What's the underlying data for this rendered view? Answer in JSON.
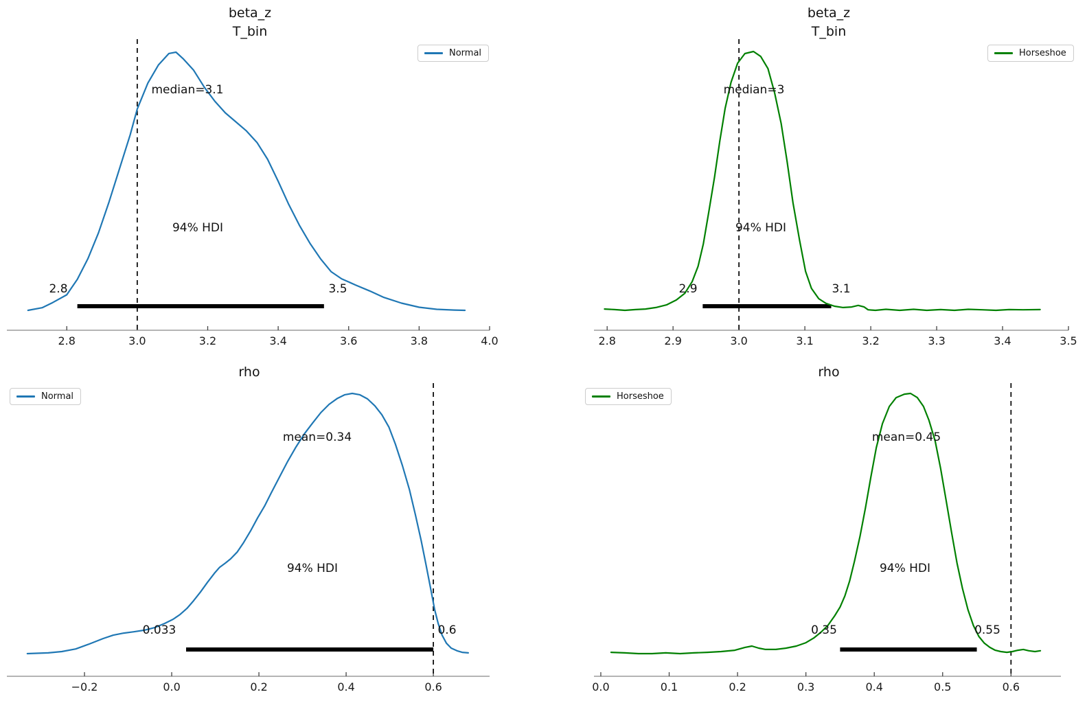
{
  "figure": {
    "background": "#ffffff",
    "hdi_bar_color": "#000000",
    "ref_line_color": "#000000"
  },
  "chart_data": [
    {
      "type": "kde",
      "title_lines": [
        "beta_z",
        "T_bin"
      ],
      "legend_label": "Normal",
      "color": "#1f77b4",
      "xlim": [
        2.63,
        4.0
      ],
      "ref_line_x": 3.0,
      "point_estimate_text": "median=3.1",
      "hdi": {
        "text": "94% HDI",
        "lower": 2.83,
        "upper": 3.53,
        "lower_label": "2.8",
        "upper_label": "3.5"
      },
      "x_ticks": [
        {
          "v": 2.8,
          "label": "2.8"
        },
        {
          "v": 3.0,
          "label": "3.0"
        },
        {
          "v": 3.2,
          "label": "3.2"
        },
        {
          "v": 3.4,
          "label": "3.4"
        },
        {
          "v": 3.6,
          "label": "3.6"
        },
        {
          "v": 3.8,
          "label": "3.8"
        },
        {
          "v": 4.0,
          "label": "4.0"
        }
      ],
      "curve": [
        [
          2.69,
          0
        ],
        [
          2.73,
          0.01
        ],
        [
          2.76,
          0.03
        ],
        [
          2.8,
          0.06
        ],
        [
          2.83,
          0.12
        ],
        [
          2.86,
          0.2
        ],
        [
          2.89,
          0.3
        ],
        [
          2.92,
          0.42
        ],
        [
          2.95,
          0.55
        ],
        [
          2.98,
          0.68
        ],
        [
          3.0,
          0.78
        ],
        [
          3.03,
          0.88
        ],
        [
          3.06,
          0.95
        ],
        [
          3.09,
          0.995
        ],
        [
          3.11,
          1.0
        ],
        [
          3.13,
          0.975
        ],
        [
          3.16,
          0.93
        ],
        [
          3.19,
          0.865
        ],
        [
          3.22,
          0.81
        ],
        [
          3.25,
          0.765
        ],
        [
          3.28,
          0.73
        ],
        [
          3.31,
          0.695
        ],
        [
          3.34,
          0.65
        ],
        [
          3.37,
          0.585
        ],
        [
          3.4,
          0.5
        ],
        [
          3.43,
          0.41
        ],
        [
          3.46,
          0.33
        ],
        [
          3.49,
          0.26
        ],
        [
          3.52,
          0.2
        ],
        [
          3.55,
          0.15
        ],
        [
          3.58,
          0.122
        ],
        [
          3.62,
          0.098
        ],
        [
          3.66,
          0.075
        ],
        [
          3.7,
          0.05
        ],
        [
          3.75,
          0.028
        ],
        [
          3.8,
          0.012
        ],
        [
          3.85,
          0.004
        ],
        [
          3.9,
          0.001
        ],
        [
          3.93,
          0
        ]
      ]
    },
    {
      "type": "kde",
      "title_lines": [
        "beta_z",
        "T_bin"
      ],
      "legend_label": "Horseshoe",
      "color": "#008000",
      "xlim": [
        2.78,
        3.5
      ],
      "ref_line_x": 3.0,
      "point_estimate_text": "median=3",
      "hdi": {
        "text": "94% HDI",
        "lower": 2.945,
        "upper": 3.14,
        "lower_label": "2.9",
        "upper_label": "3.1"
      },
      "x_ticks": [
        {
          "v": 2.8,
          "label": "2.8"
        },
        {
          "v": 2.9,
          "label": "2.9"
        },
        {
          "v": 3.0,
          "label": "3.0"
        },
        {
          "v": 3.1,
          "label": "3.1"
        },
        {
          "v": 3.2,
          "label": "3.2"
        },
        {
          "v": 3.3,
          "label": "3.3"
        },
        {
          "v": 3.4,
          "label": "3.4"
        },
        {
          "v": 3.5,
          "label": "3.5"
        }
      ],
      "curve": [
        [
          2.796,
          0.005
        ],
        [
          2.811,
          0.003
        ],
        [
          2.827,
          0
        ],
        [
          2.843,
          0.003
        ],
        [
          2.858,
          0.005
        ],
        [
          2.874,
          0.011
        ],
        [
          2.89,
          0.021
        ],
        [
          2.905,
          0.04
        ],
        [
          2.918,
          0.066
        ],
        [
          2.929,
          0.111
        ],
        [
          2.938,
          0.17
        ],
        [
          2.946,
          0.257
        ],
        [
          2.954,
          0.377
        ],
        [
          2.963,
          0.515
        ],
        [
          2.971,
          0.655
        ],
        [
          2.979,
          0.78
        ],
        [
          2.988,
          0.881
        ],
        [
          2.998,
          0.955
        ],
        [
          3.009,
          0.992
        ],
        [
          3.022,
          1.0
        ],
        [
          3.033,
          0.981
        ],
        [
          3.044,
          0.934
        ],
        [
          3.054,
          0.841
        ],
        [
          3.064,
          0.722
        ],
        [
          3.073,
          0.576
        ],
        [
          3.082,
          0.416
        ],
        [
          3.092,
          0.271
        ],
        [
          3.101,
          0.151
        ],
        [
          3.11,
          0.085
        ],
        [
          3.121,
          0.045
        ],
        [
          3.132,
          0.027
        ],
        [
          3.145,
          0.016
        ],
        [
          3.158,
          0.011
        ],
        [
          3.171,
          0.013
        ],
        [
          3.181,
          0.019
        ],
        [
          3.19,
          0.013
        ],
        [
          3.196,
          0.002
        ],
        [
          3.207,
          0.0
        ],
        [
          3.223,
          0.004
        ],
        [
          3.244,
          0.0
        ],
        [
          3.265,
          0.004
        ],
        [
          3.285,
          0.0
        ],
        [
          3.306,
          0.003
        ],
        [
          3.327,
          0.0
        ],
        [
          3.348,
          0.004
        ],
        [
          3.369,
          0.002
        ],
        [
          3.39,
          0.0
        ],
        [
          3.41,
          0.003
        ],
        [
          3.431,
          0.002
        ],
        [
          3.457,
          0.003
        ]
      ]
    },
    {
      "type": "kde",
      "title_lines": [
        "rho"
      ],
      "legend_label": "Normal",
      "color": "#1f77b4",
      "xlim": [
        -0.378,
        0.729
      ],
      "ref_line_x": 0.6,
      "point_estimate_text": "mean=0.34",
      "hdi": {
        "text": "94% HDI",
        "lower": 0.033,
        "upper": 0.6,
        "lower_label": "0.033",
        "upper_label": "0.6"
      },
      "x_ticks": [
        {
          "v": -0.2,
          "label": "−0.2"
        },
        {
          "v": 0.0,
          "label": "0.0"
        },
        {
          "v": 0.2,
          "label": "0.2"
        },
        {
          "v": 0.4,
          "label": "0.4"
        },
        {
          "v": 0.6,
          "label": "0.6"
        }
      ],
      "curve": [
        [
          -0.331,
          0
        ],
        [
          -0.283,
          0.003
        ],
        [
          -0.252,
          0.008
        ],
        [
          -0.22,
          0.018
        ],
        [
          -0.189,
          0.037
        ],
        [
          -0.157,
          0.058
        ],
        [
          -0.134,
          0.071
        ],
        [
          -0.11,
          0.079
        ],
        [
          -0.087,
          0.084
        ],
        [
          -0.063,
          0.09
        ],
        [
          -0.039,
          0.1
        ],
        [
          -0.016,
          0.116
        ],
        [
          0.003,
          0.132
        ],
        [
          0.019,
          0.15
        ],
        [
          0.035,
          0.174
        ],
        [
          0.05,
          0.203
        ],
        [
          0.066,
          0.237
        ],
        [
          0.082,
          0.274
        ],
        [
          0.098,
          0.309
        ],
        [
          0.11,
          0.332
        ],
        [
          0.123,
          0.348
        ],
        [
          0.135,
          0.364
        ],
        [
          0.15,
          0.39
        ],
        [
          0.165,
          0.427
        ],
        [
          0.181,
          0.472
        ],
        [
          0.197,
          0.522
        ],
        [
          0.213,
          0.567
        ],
        [
          0.228,
          0.617
        ],
        [
          0.247,
          0.678
        ],
        [
          0.266,
          0.739
        ],
        [
          0.285,
          0.794
        ],
        [
          0.304,
          0.844
        ],
        [
          0.323,
          0.886
        ],
        [
          0.342,
          0.926
        ],
        [
          0.361,
          0.958
        ],
        [
          0.38,
          0.981
        ],
        [
          0.397,
          0.995
        ],
        [
          0.414,
          1.0
        ],
        [
          0.431,
          0.995
        ],
        [
          0.449,
          0.979
        ],
        [
          0.466,
          0.952
        ],
        [
          0.482,
          0.918
        ],
        [
          0.498,
          0.871
        ],
        [
          0.513,
          0.805
        ],
        [
          0.529,
          0.723
        ],
        [
          0.545,
          0.631
        ],
        [
          0.559,
          0.533
        ],
        [
          0.572,
          0.435
        ],
        [
          0.583,
          0.343
        ],
        [
          0.594,
          0.248
        ],
        [
          0.603,
          0.169
        ],
        [
          0.611,
          0.116
        ],
        [
          0.62,
          0.071
        ],
        [
          0.63,
          0.04
        ],
        [
          0.641,
          0.021
        ],
        [
          0.654,
          0.011
        ],
        [
          0.666,
          0.005
        ],
        [
          0.68,
          0.003
        ]
      ]
    },
    {
      "type": "kde",
      "title_lines": [
        "rho"
      ],
      "legend_label": "Horseshoe",
      "color": "#008000",
      "xlim": [
        -0.01,
        0.673
      ],
      "ref_line_x": 0.6,
      "point_estimate_text": "mean=0.45",
      "hdi": {
        "text": "94% HDI",
        "lower": 0.35,
        "upper": 0.55,
        "lower_label": "0.35",
        "upper_label": "0.55"
      },
      "x_ticks": [
        {
          "v": 0.0,
          "label": "0.0"
        },
        {
          "v": 0.1,
          "label": "0.1"
        },
        {
          "v": 0.2,
          "label": "0.2"
        },
        {
          "v": 0.3,
          "label": "0.3"
        },
        {
          "v": 0.4,
          "label": "0.4"
        },
        {
          "v": 0.5,
          "label": "0.5"
        },
        {
          "v": 0.6,
          "label": "0.6"
        }
      ],
      "curve": [
        [
          0.015,
          0.005
        ],
        [
          0.035,
          0.003
        ],
        [
          0.055,
          0
        ],
        [
          0.075,
          0
        ],
        [
          0.095,
          0.003
        ],
        [
          0.116,
          0
        ],
        [
          0.136,
          0.003
        ],
        [
          0.156,
          0.005
        ],
        [
          0.176,
          0.008
        ],
        [
          0.196,
          0.013
        ],
        [
          0.211,
          0.024
        ],
        [
          0.221,
          0.029
        ],
        [
          0.231,
          0.021
        ],
        [
          0.241,
          0.016
        ],
        [
          0.256,
          0.016
        ],
        [
          0.271,
          0.021
        ],
        [
          0.286,
          0.029
        ],
        [
          0.3,
          0.042
        ],
        [
          0.312,
          0.061
        ],
        [
          0.322,
          0.082
        ],
        [
          0.332,
          0.108
        ],
        [
          0.342,
          0.145
        ],
        [
          0.35,
          0.179
        ],
        [
          0.357,
          0.222
        ],
        [
          0.364,
          0.28
        ],
        [
          0.371,
          0.354
        ],
        [
          0.379,
          0.449
        ],
        [
          0.387,
          0.559
        ],
        [
          0.395,
          0.678
        ],
        [
          0.403,
          0.792
        ],
        [
          0.412,
          0.884
        ],
        [
          0.422,
          0.95
        ],
        [
          0.432,
          0.984
        ],
        [
          0.444,
          0.997
        ],
        [
          0.453,
          1.0
        ],
        [
          0.463,
          0.984
        ],
        [
          0.472,
          0.95
        ],
        [
          0.48,
          0.897
        ],
        [
          0.489,
          0.818
        ],
        [
          0.497,
          0.712
        ],
        [
          0.505,
          0.591
        ],
        [
          0.513,
          0.467
        ],
        [
          0.521,
          0.348
        ],
        [
          0.529,
          0.251
        ],
        [
          0.537,
          0.169
        ],
        [
          0.545,
          0.108
        ],
        [
          0.553,
          0.066
        ],
        [
          0.561,
          0.04
        ],
        [
          0.569,
          0.024
        ],
        [
          0.577,
          0.013
        ],
        [
          0.585,
          0.008
        ],
        [
          0.594,
          0.005
        ],
        [
          0.602,
          0.008
        ],
        [
          0.61,
          0.013
        ],
        [
          0.618,
          0.016
        ],
        [
          0.626,
          0.011
        ],
        [
          0.635,
          0.008
        ],
        [
          0.643,
          0.011
        ]
      ]
    }
  ]
}
